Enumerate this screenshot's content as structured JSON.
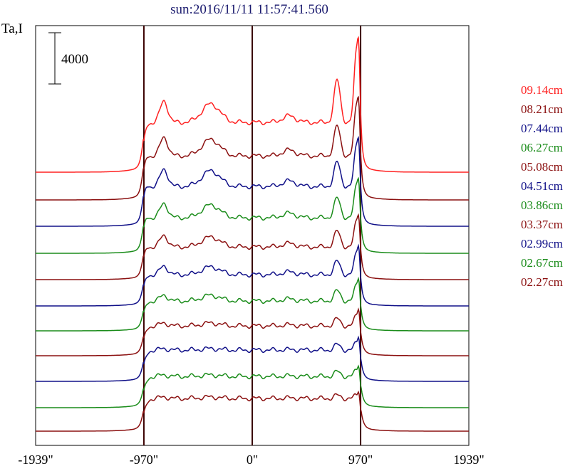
{
  "title": "sun:2016/11/11 11:57:41.560",
  "chart_data": {
    "type": "line",
    "ylabel": "Ta,I",
    "scale_bar_label": "4000",
    "scale_bar_value": 4000,
    "xlim": [
      -1939,
      1939
    ],
    "x_ticks": [
      {
        "value": -1939,
        "label": "-1939\""
      },
      {
        "value": -970,
        "label": "-970\""
      },
      {
        "value": 0,
        "label": "0\""
      },
      {
        "value": 970,
        "label": "970\""
      },
      {
        "value": 1939,
        "label": "1939\""
      }
    ],
    "vertical_lines": [
      -970,
      0,
      970
    ],
    "stacked": true,
    "series": [
      {
        "name": "09.14cm",
        "color": "#ff2020",
        "baseline": 242,
        "disk": 70,
        "peak_left": 82,
        "bump_left": 100,
        "bump_mid": 96,
        "peak_right": 178,
        "spike": 60
      },
      {
        "name": "08.21cm",
        "color": "#8b1010",
        "baseline": 281,
        "disk": 62,
        "peak_left": 78,
        "bump_left": 88,
        "bump_mid": 85,
        "peak_right": 138,
        "spike": 45
      },
      {
        "name": "07.44cm",
        "color": "#101088",
        "baseline": 318,
        "disk": 56,
        "peak_left": 74,
        "bump_left": 80,
        "bump_mid": 78,
        "peak_right": 118,
        "spike": 40
      },
      {
        "name": "06.27cm",
        "color": "#1a8c1a",
        "baseline": 356,
        "disk": 50,
        "peak_left": 66,
        "bump_left": 70,
        "bump_mid": 68,
        "peak_right": 100,
        "spike": 34
      },
      {
        "name": "05.08cm",
        "color": "#8b1010",
        "baseline": 393,
        "disk": 46,
        "peak_left": 58,
        "bump_left": 62,
        "bump_mid": 60,
        "peak_right": 86,
        "spike": 30
      },
      {
        "name": "04.51cm",
        "color": "#101088",
        "baseline": 430,
        "disk": 44,
        "peak_left": 52,
        "bump_left": 56,
        "bump_mid": 55,
        "peak_right": 78,
        "spike": 30
      },
      {
        "name": "03.86cm",
        "color": "#1a8c1a",
        "baseline": 465,
        "disk": 42,
        "peak_left": 48,
        "bump_left": 50,
        "bump_mid": 50,
        "peak_right": 68,
        "spike": 26
      },
      {
        "name": "03.37cm",
        "color": "#8b1010",
        "baseline": 500,
        "disk": 42,
        "peak_left": 46,
        "bump_left": 46,
        "bump_mid": 46,
        "peak_right": 60,
        "spike": 24
      },
      {
        "name": "02.99cm",
        "color": "#101088",
        "baseline": 536,
        "disk": 44,
        "peak_left": 46,
        "bump_left": 46,
        "bump_mid": 46,
        "peak_right": 58,
        "spike": 22
      },
      {
        "name": "02.67cm",
        "color": "#1a8c1a",
        "baseline": 573,
        "disk": 44,
        "peak_left": 46,
        "bump_left": 46,
        "bump_mid": 46,
        "peak_right": 56,
        "spike": 20
      },
      {
        "name": "02.27cm",
        "color": "#8b1010",
        "baseline": 606,
        "disk": 46,
        "peak_left": 48,
        "bump_left": 48,
        "bump_mid": 48,
        "peak_right": 54,
        "spike": 18
      }
    ]
  }
}
